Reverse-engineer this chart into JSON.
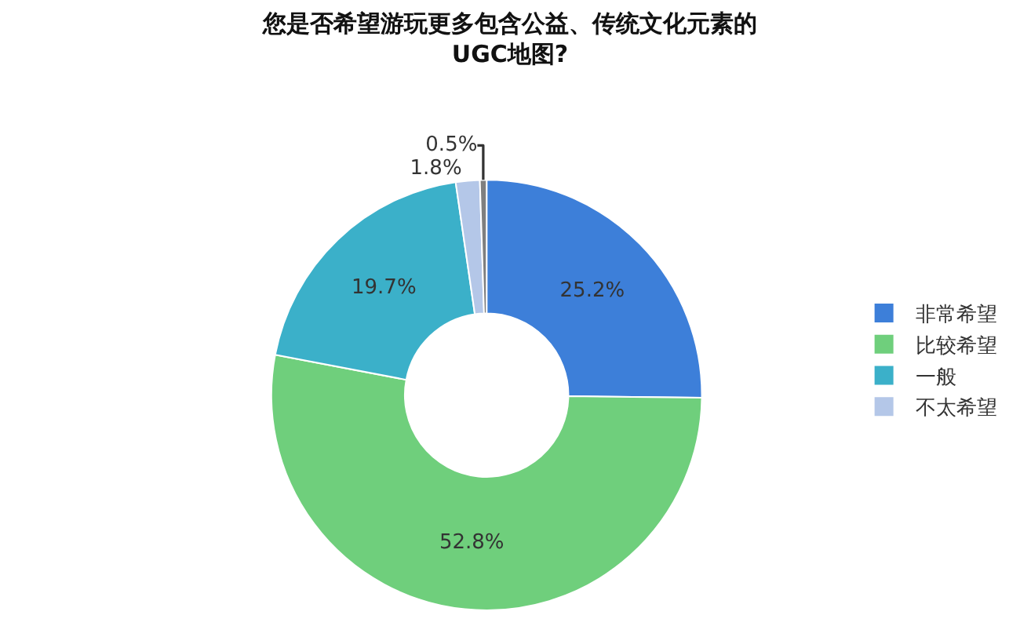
{
  "chart_data": {
    "type": "donut",
    "title": "您是否希望游玩更多包含公益、传统文化元素的\nUGC地图?",
    "categories": [
      "非常希望",
      "比较希望",
      "一般",
      "不太希望",
      null
    ],
    "values": [
      25.2,
      52.8,
      19.7,
      1.8,
      0.5
    ],
    "colors": [
      "#3d7fd9",
      "#6fcf7c",
      "#3bb0c9",
      "#b4c7e8",
      "#7f7f7f"
    ],
    "value_labels": [
      "25.2%",
      "52.8%",
      "19.7%",
      "1.8%",
      "0.5%"
    ],
    "legend": "right"
  }
}
